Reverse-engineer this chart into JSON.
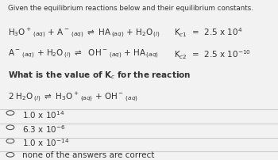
{
  "bg_color": "#f2f2f2",
  "divider_color": "#cccccc",
  "text_color": "#333333",
  "font_size_main": 7.5,
  "font_size_title": 6.3,
  "option_circle_color": "#555555"
}
